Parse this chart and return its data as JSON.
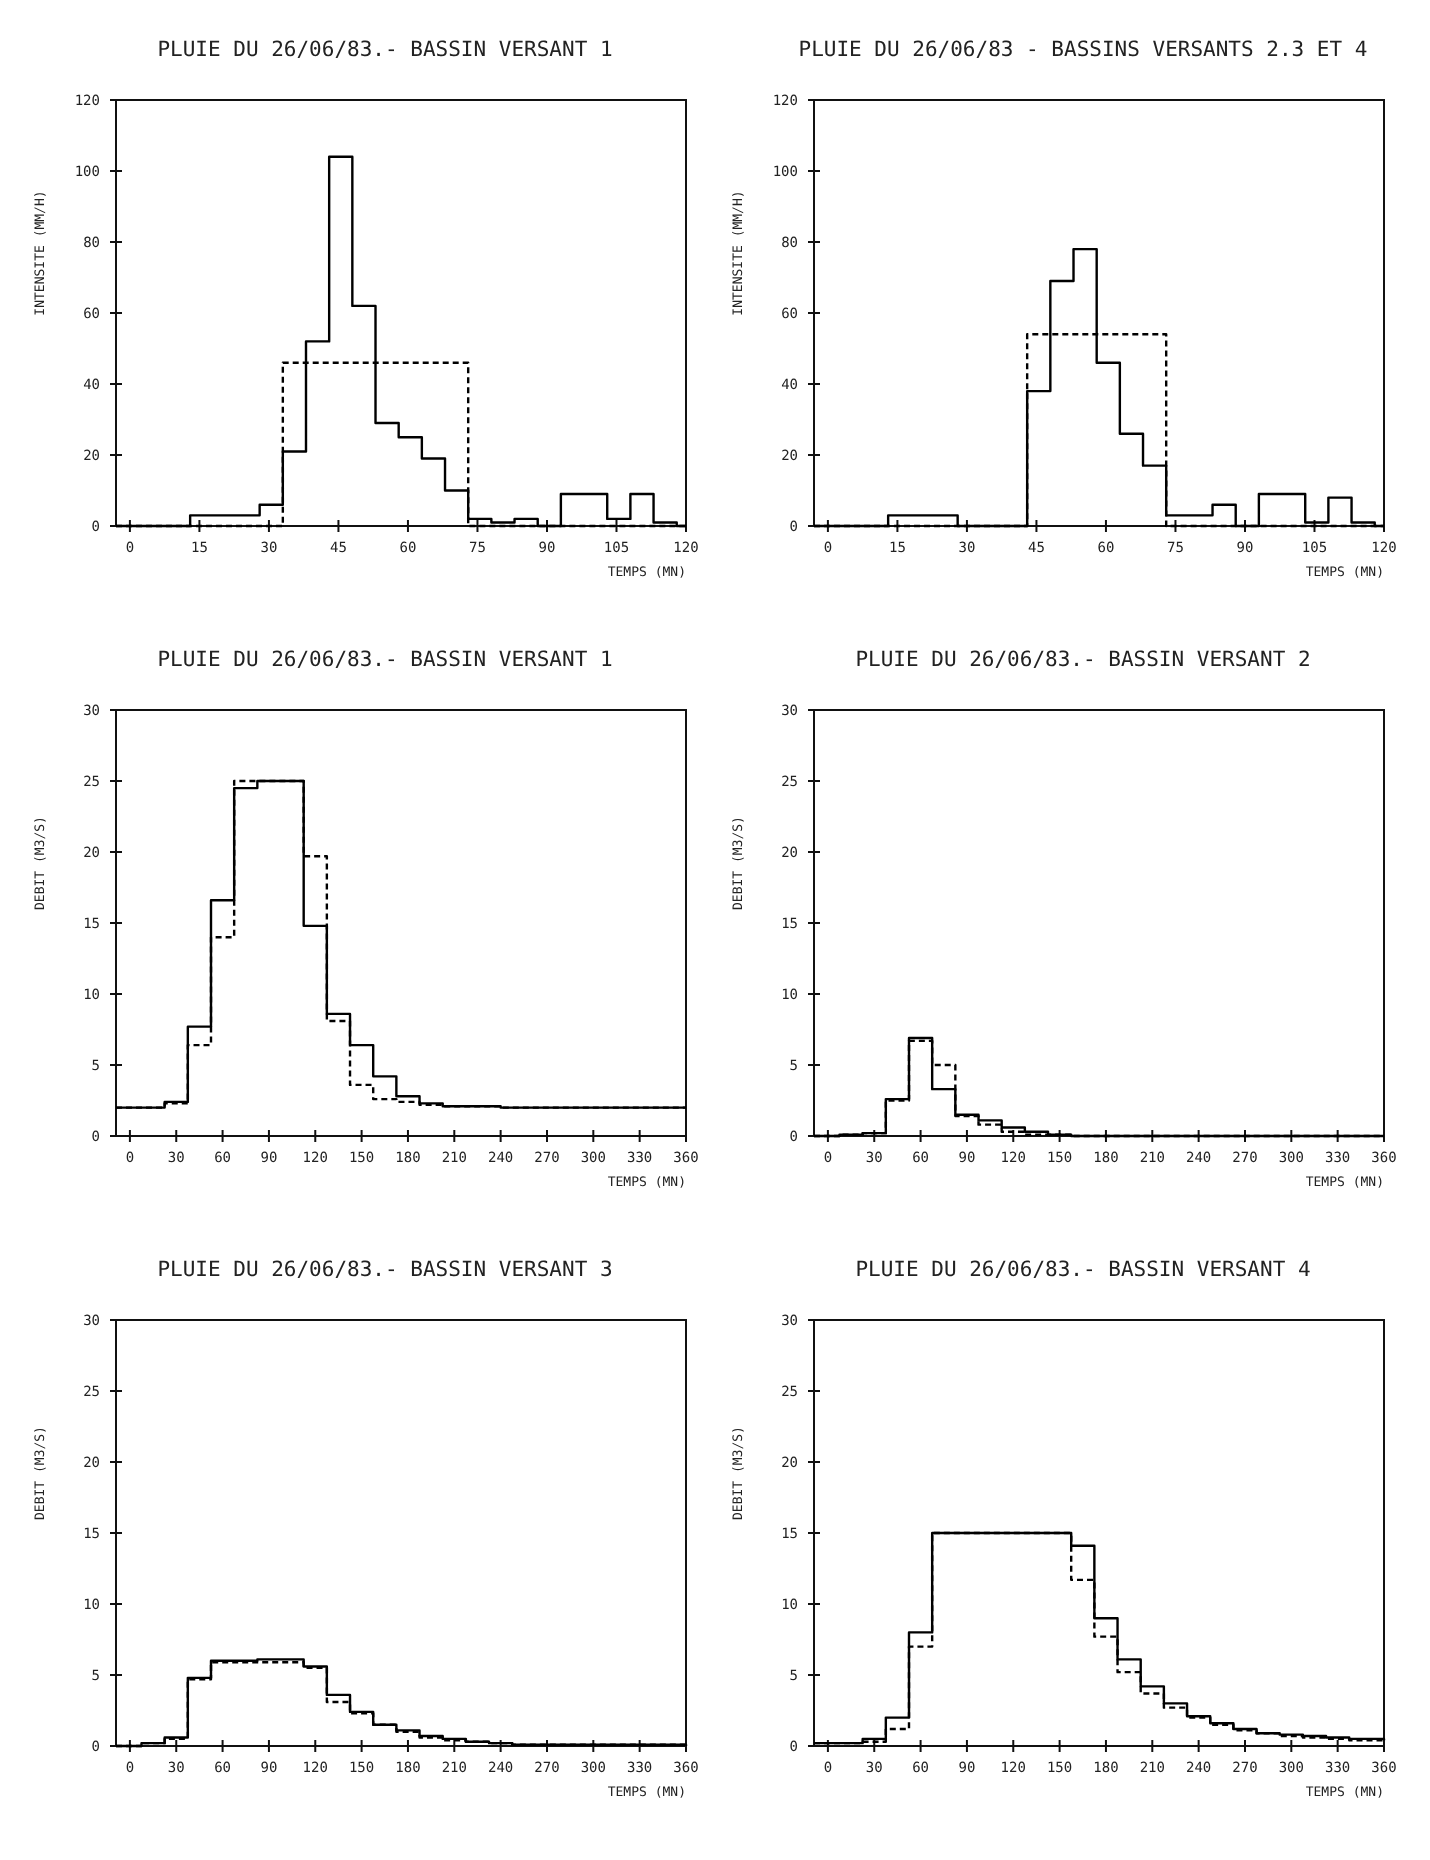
{
  "chart_data": [
    {
      "type": "step",
      "title": "PLUIE DU 26/06/83.- BASSIN VERSANT 1",
      "xlabel": "TEMPS (MN)",
      "ylabel": "INTENSITE (MM/H)",
      "xlim": [
        -3,
        120
      ],
      "ylim": [
        0,
        120
      ],
      "xticks": [
        0,
        15,
        30,
        45,
        60,
        75,
        90,
        105,
        120
      ],
      "yticks": [
        0,
        20,
        40,
        60,
        80,
        100,
        120
      ],
      "series": [
        {
          "color": "#000000",
          "line_style": "solid",
          "x": [
            -3,
            13,
            28,
            33,
            38,
            43,
            48,
            53,
            58,
            63,
            68,
            73,
            78,
            83,
            88,
            93,
            103,
            108,
            113,
            118,
            120
          ],
          "values": [
            0,
            3,
            6,
            21,
            52,
            104,
            62,
            29,
            25,
            19,
            10,
            2,
            1,
            2,
            0,
            9,
            2,
            9,
            1,
            0,
            0
          ]
        },
        {
          "color": "#000000",
          "line_style": "dashed",
          "x": [
            -3,
            33,
            73,
            120
          ],
          "values": [
            0,
            46,
            0,
            0
          ]
        }
      ]
    },
    {
      "type": "step",
      "title": "PLUIE DU 26/06/83 - BASSINS VERSANTS 2.3 ET 4",
      "xlabel": "TEMPS (MN)",
      "ylabel": "INTENSITE (MM/H)",
      "xlim": [
        -3,
        120
      ],
      "ylim": [
        0,
        120
      ],
      "xticks": [
        0,
        15,
        30,
        45,
        60,
        75,
        90,
        105,
        120
      ],
      "yticks": [
        0,
        20,
        40,
        60,
        80,
        100,
        120
      ],
      "series": [
        {
          "color": "#000000",
          "line_style": "solid",
          "x": [
            -3,
            13,
            28,
            43,
            48,
            53,
            58,
            63,
            68,
            73,
            83,
            88,
            93,
            103,
            108,
            113,
            118,
            120
          ],
          "values": [
            0,
            3,
            0,
            38,
            69,
            78,
            46,
            26,
            17,
            3,
            6,
            0,
            9,
            1,
            8,
            1,
            0,
            0
          ]
        },
        {
          "color": "#000000",
          "line_style": "dashed",
          "x": [
            -3,
            43,
            73,
            120
          ],
          "values": [
            0,
            54,
            0,
            0
          ]
        }
      ]
    },
    {
      "type": "step",
      "title": "PLUIE DU 26/06/83.- BASSIN VERSANT 1",
      "xlabel": "TEMPS (MN)",
      "ylabel": "DEBIT (M3/S)",
      "xlim": [
        -9,
        360
      ],
      "ylim": [
        0,
        30
      ],
      "xticks": [
        0,
        30,
        60,
        90,
        120,
        150,
        180,
        210,
        240,
        270,
        300,
        330,
        360
      ],
      "yticks": [
        0,
        5,
        10,
        15,
        20,
        25,
        30
      ],
      "series": [
        {
          "color": "#000000",
          "line_style": "solid",
          "x": [
            -9,
            22.5,
            37.5,
            52.5,
            67.5,
            82.5,
            112.5,
            127.5,
            142.5,
            157.5,
            172.5,
            187.5,
            202.5,
            240,
            360
          ],
          "values": [
            2.0,
            2.4,
            7.7,
            16.6,
            24.5,
            25,
            14.8,
            8.6,
            6.4,
            4.2,
            2.8,
            2.3,
            2.1,
            2.0,
            2.0
          ]
        },
        {
          "color": "#000000",
          "line_style": "dashed",
          "x": [
            -9,
            22.5,
            37.5,
            52.5,
            67.5,
            82.5,
            112.5,
            127.5,
            142.5,
            157.5,
            172.5,
            187.5,
            202.5,
            240,
            360
          ],
          "values": [
            2.0,
            2.3,
            6.4,
            14,
            25,
            25,
            19.7,
            8.1,
            3.6,
            2.6,
            2.4,
            2.2,
            2.1,
            2.0,
            2.0
          ]
        }
      ]
    },
    {
      "type": "step",
      "title": "PLUIE DU 26/06/83.- BASSIN VERSANT 2",
      "xlabel": "TEMPS (MN)",
      "ylabel": "DEBIT (M3/S)",
      "xlim": [
        -9,
        360
      ],
      "ylim": [
        0,
        30
      ],
      "xticks": [
        0,
        30,
        60,
        90,
        120,
        150,
        180,
        210,
        240,
        270,
        300,
        330,
        360
      ],
      "yticks": [
        0,
        5,
        10,
        15,
        20,
        25,
        30
      ],
      "series": [
        {
          "color": "#000000",
          "line_style": "solid",
          "x": [
            -9,
            7.5,
            22.5,
            37.5,
            52.5,
            67.5,
            82.5,
            97.5,
            112.5,
            127.5,
            142.5,
            157.5,
            360
          ],
          "values": [
            0,
            0.1,
            0.2,
            2.6,
            6.9,
            3.3,
            1.5,
            1.1,
            0.6,
            0.3,
            0.1,
            0,
            0
          ]
        },
        {
          "color": "#000000",
          "line_style": "dashed",
          "x": [
            -9,
            7.5,
            22.5,
            37.5,
            52.5,
            67.5,
            82.5,
            97.5,
            112.5,
            127.5,
            142.5,
            157.5,
            360
          ],
          "values": [
            0,
            0.1,
            0.2,
            2.5,
            6.7,
            5.0,
            1.4,
            0.8,
            0.3,
            0.1,
            0.1,
            0,
            0
          ]
        }
      ]
    },
    {
      "type": "step",
      "title": "PLUIE DU 26/06/83.- BASSIN VERSANT 3",
      "xlabel": "TEMPS (MN)",
      "ylabel": "DEBIT (M3/S)",
      "xlim": [
        -9,
        360
      ],
      "ylim": [
        0,
        30
      ],
      "xticks": [
        0,
        30,
        60,
        90,
        120,
        150,
        180,
        210,
        240,
        270,
        300,
        330,
        360
      ],
      "yticks": [
        0,
        5,
        10,
        15,
        20,
        25,
        30
      ],
      "series": [
        {
          "color": "#000000",
          "line_style": "solid",
          "x": [
            -9,
            7.5,
            22.5,
            37.5,
            52.5,
            82.5,
            112.5,
            127.5,
            142.5,
            157.5,
            172.5,
            187.5,
            202.5,
            217.5,
            232.5,
            247.5,
            262.5,
            360
          ],
          "values": [
            0,
            0.2,
            0.6,
            4.8,
            6.0,
            6.1,
            5.6,
            3.6,
            2.4,
            1.5,
            1.1,
            0.7,
            0.5,
            0.3,
            0.2,
            0.1,
            0.1,
            0
          ]
        },
        {
          "color": "#000000",
          "line_style": "dashed",
          "x": [
            -9,
            7.5,
            22.5,
            37.5,
            52.5,
            82.5,
            112.5,
            127.5,
            142.5,
            157.5,
            172.5,
            187.5,
            202.5,
            217.5,
            232.5,
            247.5,
            262.5,
            360
          ],
          "values": [
            0,
            0.2,
            0.5,
            4.7,
            5.9,
            5.9,
            5.5,
            3.1,
            2.3,
            1.5,
            1.0,
            0.6,
            0.4,
            0.3,
            0.2,
            0.1,
            0.1,
            0
          ]
        }
      ]
    },
    {
      "type": "step",
      "title": "PLUIE DU 26/06/83.- BASSIN VERSANT 4",
      "xlabel": "TEMPS (MN)",
      "ylabel": "DEBIT (M3/S)",
      "xlim": [
        -9,
        360
      ],
      "ylim": [
        0,
        30
      ],
      "xticks": [
        0,
        30,
        60,
        90,
        120,
        150,
        180,
        210,
        240,
        270,
        300,
        330,
        360
      ],
      "yticks": [
        0,
        5,
        10,
        15,
        20,
        25,
        30
      ],
      "series": [
        {
          "color": "#000000",
          "line_style": "solid",
          "x": [
            -9,
            22.5,
            37.5,
            52.5,
            67.5,
            157.5,
            172.5,
            187.5,
            202.5,
            217.5,
            232.5,
            247.5,
            262.5,
            277.5,
            292.5,
            307.5,
            322.5,
            337.5,
            360
          ],
          "values": [
            0.2,
            0.5,
            2.0,
            8.0,
            15.0,
            14.1,
            9.0,
            6.1,
            4.2,
            3.0,
            2.1,
            1.6,
            1.2,
            0.9,
            0.8,
            0.7,
            0.6,
            0.5,
            0.4
          ]
        },
        {
          "color": "#000000",
          "line_style": "dashed",
          "x": [
            -9,
            22.5,
            37.5,
            52.5,
            67.5,
            157.5,
            172.5,
            187.5,
            202.5,
            217.5,
            232.5,
            247.5,
            262.5,
            277.5,
            292.5,
            307.5,
            322.5,
            337.5,
            360
          ],
          "values": [
            0.2,
            0.3,
            1.2,
            7.0,
            15.0,
            11.7,
            7.7,
            5.2,
            3.7,
            2.7,
            2.0,
            1.5,
            1.1,
            0.9,
            0.7,
            0.6,
            0.5,
            0.4,
            0.4
          ]
        }
      ]
    }
  ]
}
